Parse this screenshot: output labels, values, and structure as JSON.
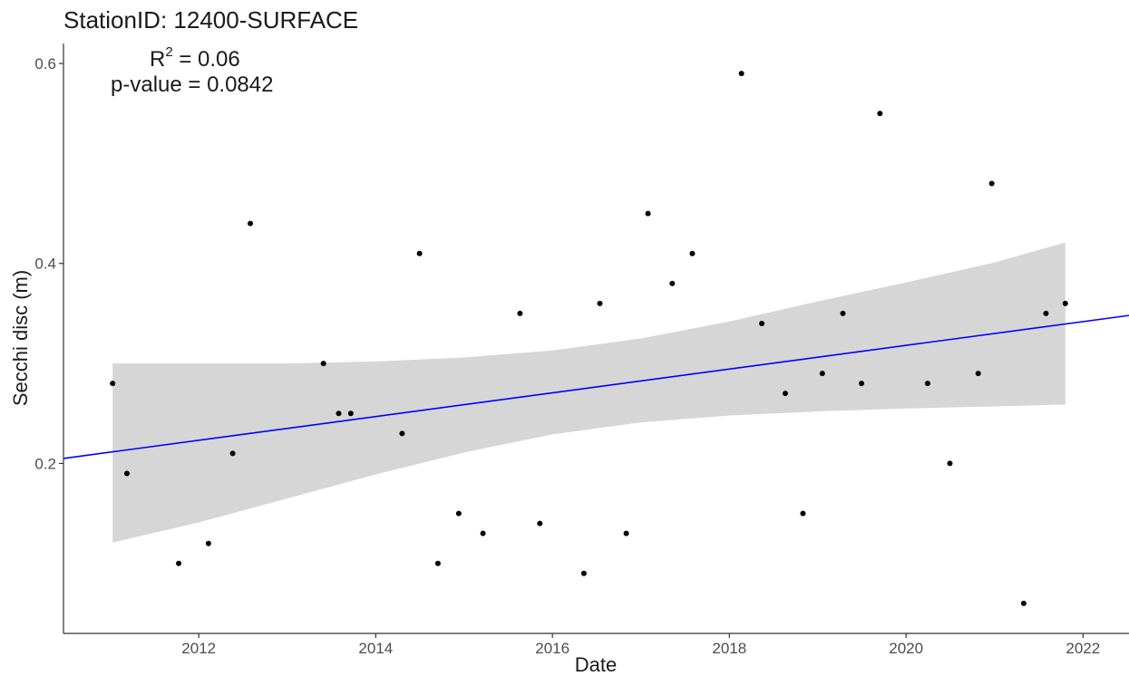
{
  "chart_data": {
    "type": "scatter",
    "title": "StationID: 12400-SURFACE",
    "annotations": {
      "r2_base": "R",
      "r2_exp": "2",
      "r2_value": " = 0.06",
      "p_value": "p-value = 0.0842"
    },
    "xlabel": "Date",
    "ylabel": "Secchi disc (m)",
    "xlim": [
      "2010-06-21",
      "2022-07-10"
    ],
    "ylim": [
      0.03,
      0.62
    ],
    "x_ticks": [
      {
        "date": "2012-01-01",
        "label": "2012"
      },
      {
        "date": "2014-01-01",
        "label": "2014"
      },
      {
        "date": "2016-01-01",
        "label": "2016"
      },
      {
        "date": "2018-01-01",
        "label": "2018"
      },
      {
        "date": "2020-01-01",
        "label": "2020"
      },
      {
        "date": "2022-01-01",
        "label": "2022"
      }
    ],
    "y_ticks": [
      {
        "value": 0.2,
        "label": "0.2"
      },
      {
        "value": 0.4,
        "label": "0.4"
      },
      {
        "value": 0.6,
        "label": "0.6"
      }
    ],
    "grid": false,
    "colors": {
      "points": "#000000",
      "trend_line": "#0000ff",
      "confidence_band": "#d6d6d6"
    },
    "points": [
      {
        "x": "2011-01-10",
        "y": 0.28
      },
      {
        "x": "2011-03-10",
        "y": 0.19
      },
      {
        "x": "2011-10-10",
        "y": 0.1
      },
      {
        "x": "2012-02-10",
        "y": 0.12
      },
      {
        "x": "2012-05-20",
        "y": 0.21
      },
      {
        "x": "2012-08-01",
        "y": 0.44
      },
      {
        "x": "2013-05-30",
        "y": 0.3
      },
      {
        "x": "2013-08-01",
        "y": 0.25
      },
      {
        "x": "2013-09-20",
        "y": 0.25
      },
      {
        "x": "2014-04-20",
        "y": 0.23
      },
      {
        "x": "2014-07-01",
        "y": 0.41
      },
      {
        "x": "2014-09-15",
        "y": 0.1
      },
      {
        "x": "2014-12-10",
        "y": 0.15
      },
      {
        "x": "2015-03-20",
        "y": 0.13
      },
      {
        "x": "2015-08-20",
        "y": 0.35
      },
      {
        "x": "2015-11-10",
        "y": 0.14
      },
      {
        "x": "2016-05-10",
        "y": 0.09
      },
      {
        "x": "2016-07-15",
        "y": 0.36
      },
      {
        "x": "2016-11-01",
        "y": 0.13
      },
      {
        "x": "2017-01-30",
        "y": 0.45
      },
      {
        "x": "2017-05-10",
        "y": 0.38
      },
      {
        "x": "2017-08-01",
        "y": 0.41
      },
      {
        "x": "2018-02-20",
        "y": 0.59
      },
      {
        "x": "2018-05-15",
        "y": 0.34
      },
      {
        "x": "2018-08-20",
        "y": 0.27
      },
      {
        "x": "2018-11-01",
        "y": 0.15
      },
      {
        "x": "2019-01-20",
        "y": 0.29
      },
      {
        "x": "2019-04-15",
        "y": 0.35
      },
      {
        "x": "2019-09-15",
        "y": 0.55
      },
      {
        "x": "2019-07-01",
        "y": 0.28
      },
      {
        "x": "2020-03-30",
        "y": 0.28
      },
      {
        "x": "2020-06-30",
        "y": 0.2
      },
      {
        "x": "2020-10-25",
        "y": 0.29
      },
      {
        "x": "2020-12-20",
        "y": 0.48
      },
      {
        "x": "2021-05-01",
        "y": 0.06
      },
      {
        "x": "2021-08-01",
        "y": 0.35
      },
      {
        "x": "2021-10-20",
        "y": 0.36
      }
    ],
    "trend_line": [
      {
        "x": "2010-06-21",
        "y": 0.205
      },
      {
        "x": "2022-07-10",
        "y": 0.348
      }
    ],
    "confidence_band": [
      {
        "x": "2011-01-10",
        "lower": 0.121,
        "upper": 0.3
      },
      {
        "x": "2012-01-01",
        "lower": 0.141,
        "upper": 0.3
      },
      {
        "x": "2013-01-01",
        "lower": 0.165,
        "upper": 0.3
      },
      {
        "x": "2014-01-01",
        "lower": 0.189,
        "upper": 0.302
      },
      {
        "x": "2015-01-01",
        "lower": 0.211,
        "upper": 0.306
      },
      {
        "x": "2016-01-01",
        "lower": 0.229,
        "upper": 0.313
      },
      {
        "x": "2017-01-01",
        "lower": 0.241,
        "upper": 0.325
      },
      {
        "x": "2018-01-01",
        "lower": 0.248,
        "upper": 0.342
      },
      {
        "x": "2019-01-01",
        "lower": 0.252,
        "upper": 0.362
      },
      {
        "x": "2020-01-01",
        "lower": 0.255,
        "upper": 0.381
      },
      {
        "x": "2021-01-01",
        "lower": 0.257,
        "upper": 0.401
      },
      {
        "x": "2021-10-20",
        "lower": 0.259,
        "upper": 0.421
      }
    ]
  }
}
